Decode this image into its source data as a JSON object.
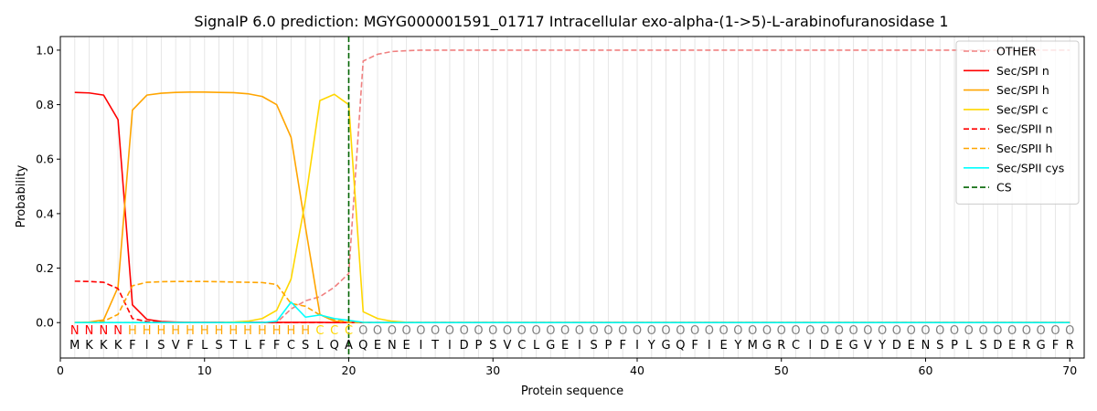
{
  "chart_data": {
    "type": "line",
    "title": "SignalP 6.0 prediction: MGYG000001591_01717 Intracellular exo-alpha-(1->5)-L-arabinofuranosidase 1",
    "xlabel": "Protein sequence",
    "ylabel": "Probability",
    "xlim": [
      0,
      71
    ],
    "ylim": [
      -0.13,
      1.05
    ],
    "x_ticks": [
      0,
      10,
      20,
      30,
      40,
      50,
      60,
      70
    ],
    "y_ticks": [
      0.0,
      0.2,
      0.4,
      0.6,
      0.8,
      1.0
    ],
    "x_tick_labels": [
      "0",
      "10",
      "20",
      "30",
      "40",
      "50",
      "60",
      "70"
    ],
    "y_tick_labels": [
      "0.0",
      "0.2",
      "0.4",
      "0.6",
      "0.8",
      "1.0"
    ],
    "legend_position": "top-right",
    "sequence": [
      "M",
      "K",
      "K",
      "K",
      "F",
      "I",
      "S",
      "V",
      "F",
      "L",
      "S",
      "T",
      "L",
      "F",
      "F",
      "C",
      "S",
      "L",
      "Q",
      "A",
      "Q",
      "E",
      "N",
      "E",
      "I",
      "T",
      "I",
      "D",
      "P",
      "S",
      "V",
      "C",
      "L",
      "G",
      "E",
      "I",
      "S",
      "P",
      "F",
      "I",
      "Y",
      "G",
      "Q",
      "F",
      "I",
      "E",
      "Y",
      "M",
      "G",
      "R",
      "C",
      "I",
      "D",
      "E",
      "G",
      "V",
      "Y",
      "D",
      "E",
      "N",
      "S",
      "P",
      "L",
      "S",
      "D",
      "E",
      "R",
      "G",
      "F",
      "R"
    ],
    "states": [
      "N",
      "N",
      "N",
      "N",
      "H",
      "H",
      "H",
      "H",
      "H",
      "H",
      "H",
      "H",
      "H",
      "H",
      "H",
      "H",
      "H",
      "C",
      "C",
      "C",
      "O",
      "O",
      "O",
      "O",
      "O",
      "O",
      "O",
      "O",
      "O",
      "O",
      "O",
      "O",
      "O",
      "O",
      "O",
      "O",
      "O",
      "O",
      "O",
      "O",
      "O",
      "O",
      "O",
      "O",
      "O",
      "O",
      "O",
      "O",
      "O",
      "O",
      "O",
      "O",
      "O",
      "O",
      "O",
      "O",
      "O",
      "O",
      "O",
      "O",
      "O",
      "O",
      "O",
      "O",
      "O",
      "O",
      "O",
      "O",
      "O",
      "O"
    ],
    "state_colors": {
      "N": "#ff0000",
      "H": "#ffa500",
      "C": "#ffd700",
      "O": "#808080"
    },
    "series": [
      {
        "name": "OTHER",
        "color": "#f08080",
        "dash": "dashed",
        "values": [
          0.0,
          0.0,
          0.0,
          0.0,
          0.0,
          0.0,
          0.0,
          0.0,
          0.0,
          0.0,
          0.0,
          0.0,
          0.0,
          0.0,
          0.0,
          0.05,
          0.08,
          0.095,
          0.13,
          0.18,
          0.96,
          0.985,
          0.995,
          0.998,
          1,
          1,
          1,
          1,
          1,
          1,
          1,
          1,
          1,
          1,
          1,
          1,
          1,
          1,
          1,
          1,
          1,
          1,
          1,
          1,
          1,
          1,
          1,
          1,
          1,
          1,
          1,
          1,
          1,
          1,
          1,
          1,
          1,
          1,
          1,
          1,
          1,
          1,
          1,
          1,
          1,
          1,
          1,
          1,
          1,
          1
        ]
      },
      {
        "name": "Sec/SPI n",
        "color": "#ff0000",
        "dash": "solid",
        "values": [
          0.845,
          0.843,
          0.835,
          0.745,
          0.065,
          0.012,
          0.004,
          0.002,
          0.001,
          0.001,
          0.001,
          0.001,
          0.001,
          0.001,
          0.001,
          0.001,
          0.001,
          0.001,
          0.0,
          0.0,
          0.0,
          0.0,
          0.0,
          0.0,
          0.0,
          0.0,
          0.0,
          0.0,
          0.0,
          0.0,
          0.0,
          0.0,
          0.0,
          0.0,
          0.0,
          0.0,
          0.0,
          0.0,
          0.0,
          0.0,
          0.0,
          0.0,
          0.0,
          0.0,
          0.0,
          0.0,
          0.0,
          0.0,
          0.0,
          0.0,
          0.0,
          0.0,
          0.0,
          0.0,
          0.0,
          0.0,
          0.0,
          0.0,
          0.0,
          0.0,
          0.0,
          0.0,
          0.0,
          0.0,
          0.0,
          0.0,
          0.0,
          0.0,
          0.0,
          0.0
        ]
      },
      {
        "name": "Sec/SPI h",
        "color": "#ffa500",
        "dash": "solid",
        "values": [
          0.0,
          0.002,
          0.01,
          0.13,
          0.78,
          0.835,
          0.842,
          0.845,
          0.846,
          0.846,
          0.845,
          0.844,
          0.84,
          0.83,
          0.8,
          0.68,
          0.35,
          0.03,
          0.005,
          0.001,
          0.0,
          0.0,
          0.0,
          0.0,
          0.0,
          0.0,
          0.0,
          0.0,
          0.0,
          0.0,
          0.0,
          0.0,
          0.0,
          0.0,
          0.0,
          0.0,
          0.0,
          0.0,
          0.0,
          0.0,
          0.0,
          0.0,
          0.0,
          0.0,
          0.0,
          0.0,
          0.0,
          0.0,
          0.0,
          0.0,
          0.0,
          0.0,
          0.0,
          0.0,
          0.0,
          0.0,
          0.0,
          0.0,
          0.0,
          0.0,
          0.0,
          0.0,
          0.0,
          0.0,
          0.0,
          0.0,
          0.0,
          0.0,
          0.0,
          0.0
        ]
      },
      {
        "name": "Sec/SPI c",
        "color": "#ffd700",
        "dash": "solid",
        "values": [
          0.0,
          0.0,
          0.0,
          0.0,
          0.0,
          0.0,
          0.0,
          0.0,
          0.0,
          0.0,
          0.0,
          0.002,
          0.005,
          0.015,
          0.045,
          0.16,
          0.45,
          0.815,
          0.838,
          0.8,
          0.04,
          0.015,
          0.005,
          0.001,
          0.0,
          0.0,
          0.0,
          0.0,
          0.0,
          0.0,
          0.0,
          0.0,
          0.0,
          0.0,
          0.0,
          0.0,
          0.0,
          0.0,
          0.0,
          0.0,
          0.0,
          0.0,
          0.0,
          0.0,
          0.0,
          0.0,
          0.0,
          0.0,
          0.0,
          0.0,
          0.0,
          0.0,
          0.0,
          0.0,
          0.0,
          0.0,
          0.0,
          0.0,
          0.0,
          0.0,
          0.0,
          0.0,
          0.0,
          0.0,
          0.0,
          0.0,
          0.0,
          0.0,
          0.0,
          0.0
        ]
      },
      {
        "name": "Sec/SPII n",
        "color": "#ff0000",
        "dash": "dashed",
        "values": [
          0.152,
          0.151,
          0.148,
          0.125,
          0.015,
          0.004,
          0.001,
          0.0,
          0.0,
          0.0,
          0.0,
          0.0,
          0.0,
          0.0,
          0.0,
          0.0,
          0.0,
          0.0,
          0.0,
          0.0,
          0.0,
          0.0,
          0.0,
          0.0,
          0.0,
          0.0,
          0.0,
          0.0,
          0.0,
          0.0,
          0.0,
          0.0,
          0.0,
          0.0,
          0.0,
          0.0,
          0.0,
          0.0,
          0.0,
          0.0,
          0.0,
          0.0,
          0.0,
          0.0,
          0.0,
          0.0,
          0.0,
          0.0,
          0.0,
          0.0,
          0.0,
          0.0,
          0.0,
          0.0,
          0.0,
          0.0,
          0.0,
          0.0,
          0.0,
          0.0,
          0.0,
          0.0,
          0.0,
          0.0,
          0.0,
          0.0,
          0.0,
          0.0,
          0.0,
          0.0
        ]
      },
      {
        "name": "Sec/SPII h",
        "color": "#ffa500",
        "dash": "dashed",
        "values": [
          0.0,
          0.0,
          0.005,
          0.03,
          0.135,
          0.148,
          0.15,
          0.151,
          0.151,
          0.151,
          0.15,
          0.149,
          0.148,
          0.147,
          0.14,
          0.07,
          0.06,
          0.028,
          0.01,
          0.001,
          0.0,
          0.0,
          0.0,
          0.0,
          0.0,
          0.0,
          0.0,
          0.0,
          0.0,
          0.0,
          0.0,
          0.0,
          0.0,
          0.0,
          0.0,
          0.0,
          0.0,
          0.0,
          0.0,
          0.0,
          0.0,
          0.0,
          0.0,
          0.0,
          0.0,
          0.0,
          0.0,
          0.0,
          0.0,
          0.0,
          0.0,
          0.0,
          0.0,
          0.0,
          0.0,
          0.0,
          0.0,
          0.0,
          0.0,
          0.0,
          0.0,
          0.0,
          0.0,
          0.0,
          0.0,
          0.0,
          0.0,
          0.0,
          0.0,
          0.0
        ]
      },
      {
        "name": "Sec/SPII cys",
        "color": "#00ffff",
        "dash": "solid",
        "values": [
          0.0,
          0.0,
          0.0,
          0.0,
          0.0,
          0.0,
          0.0,
          0.0,
          0.0,
          0.0,
          0.0,
          0.0,
          0.0,
          0.0,
          0.005,
          0.075,
          0.02,
          0.028,
          0.015,
          0.008,
          0.001,
          0.0,
          0.0,
          0.0,
          0.0,
          0.0,
          0.0,
          0.0,
          0.0,
          0.0,
          0.0,
          0.0,
          0.0,
          0.0,
          0.0,
          0.0,
          0.0,
          0.0,
          0.0,
          0.0,
          0.0,
          0.0,
          0.0,
          0.0,
          0.0,
          0.0,
          0.0,
          0.0,
          0.0,
          0.0,
          0.0,
          0.0,
          0.0,
          0.0,
          0.0,
          0.0,
          0.0,
          0.0,
          0.0,
          0.0,
          0.0,
          0.0,
          0.0,
          0.0,
          0.0,
          0.0,
          0.0,
          0.0,
          0.0,
          0.0
        ]
      }
    ],
    "cleavage_site": {
      "name": "CS",
      "x": 20,
      "color": "#006400",
      "dash": "dashed"
    }
  }
}
